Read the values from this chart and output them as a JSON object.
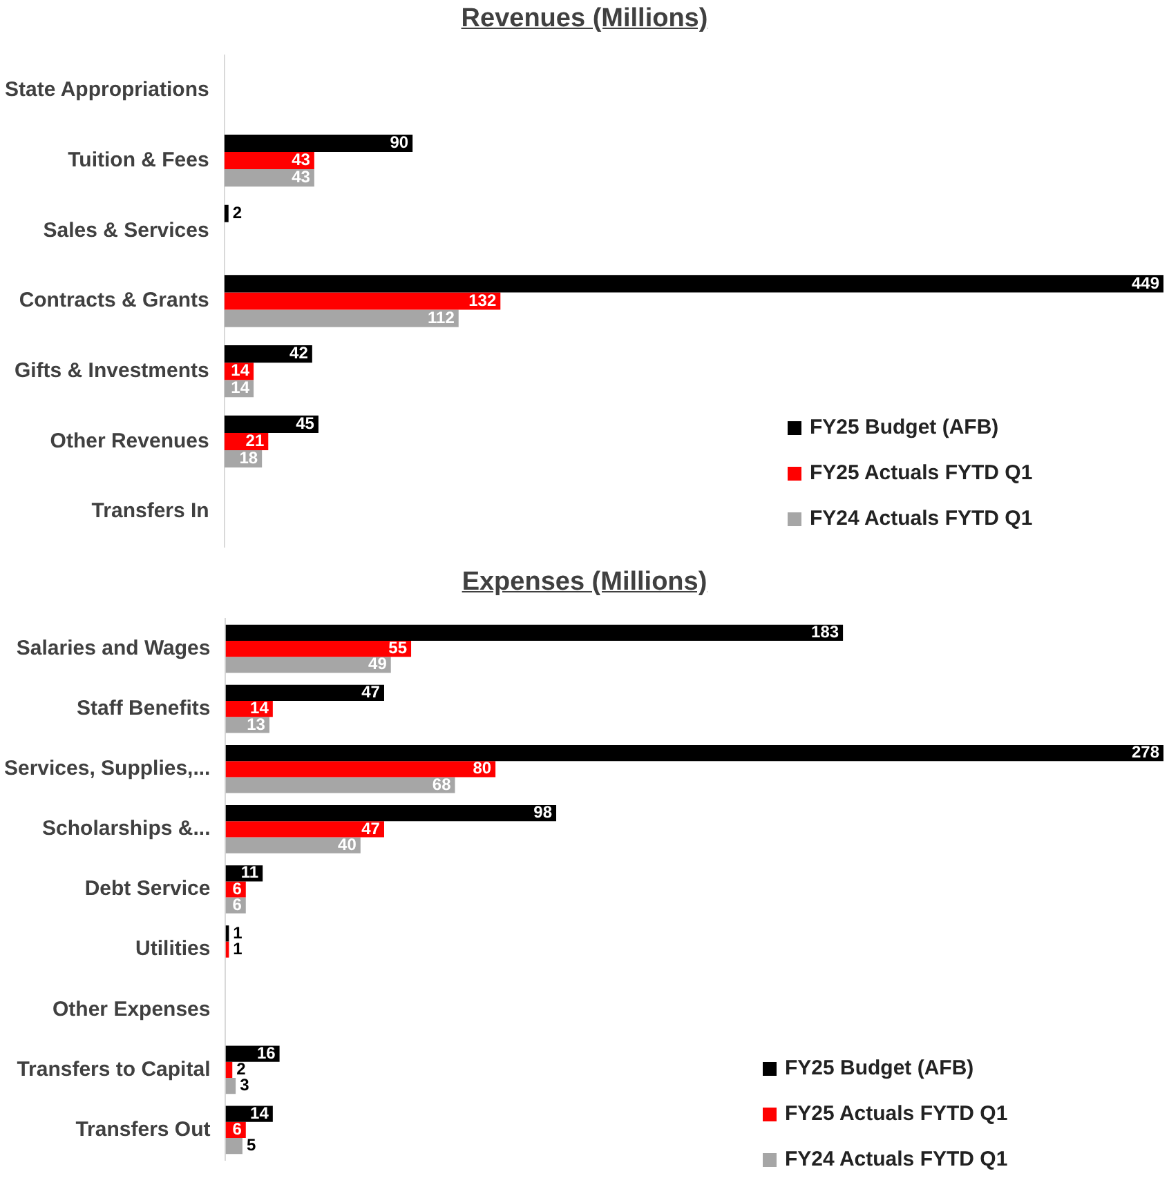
{
  "chart_data": [
    {
      "type": "bar",
      "orientation": "horizontal",
      "title": "Revenues (Millions)",
      "categories": [
        "State Appropriations",
        "Tuition & Fees",
        "Sales & Services",
        "Contracts & Grants",
        "Gifts & Investments",
        "Other Revenues",
        "Transfers In"
      ],
      "series": [
        {
          "name": "FY25 Budget (AFB)",
          "color": "#000000",
          "values": [
            null,
            90,
            2,
            449,
            42,
            45,
            null
          ]
        },
        {
          "name": "FY25 Actuals FYTD Q1",
          "color": "#ff0000",
          "values": [
            null,
            43,
            null,
            132,
            14,
            21,
            null
          ]
        },
        {
          "name": "FY24 Actuals FYTD Q1",
          "color": "#a6a6a6",
          "values": [
            null,
            43,
            null,
            112,
            14,
            18,
            null
          ]
        }
      ],
      "data_labels": true,
      "legend": "bottom right",
      "grid": false,
      "tick_labels": "y"
    },
    {
      "type": "bar",
      "orientation": "horizontal",
      "title": "Expenses (Millions)",
      "categories": [
        "Salaries and Wages",
        "Staff Benefits",
        "Services, Supplies,...",
        "Scholarships &...",
        "Debt Service",
        "Utilities",
        "Other Expenses",
        "Transfers to Capital",
        "Transfers Out"
      ],
      "series": [
        {
          "name": "FY25 Budget (AFB)",
          "color": "#000000",
          "values": [
            183,
            47,
            278,
            98,
            11,
            1,
            null,
            16,
            14
          ]
        },
        {
          "name": "FY25 Actuals FYTD Q1",
          "color": "#ff0000",
          "values": [
            55,
            14,
            80,
            47,
            6,
            1,
            null,
            2,
            6
          ]
        },
        {
          "name": "FY24 Actuals FYTD Q1",
          "color": "#a6a6a6",
          "values": [
            49,
            13,
            68,
            40,
            6,
            null,
            null,
            3,
            5
          ]
        }
      ],
      "data_labels": true,
      "legend": "bottom right",
      "grid": false,
      "tick_labels": "y"
    }
  ]
}
